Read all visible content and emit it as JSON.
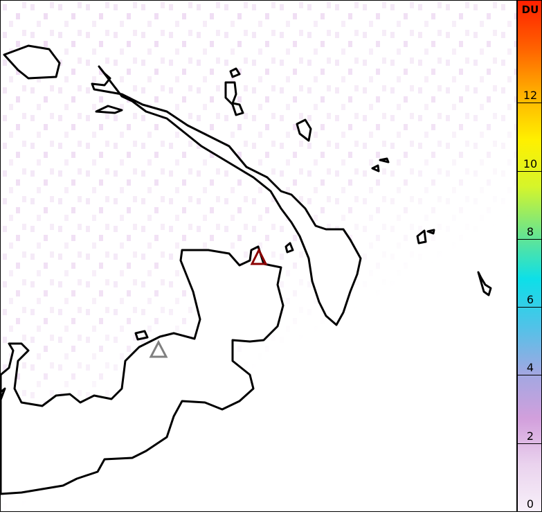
{
  "colorbar": {
    "unit": "DU",
    "range": [
      0,
      15
    ],
    "ticks": [
      "0",
      "2",
      "4",
      "6",
      "8",
      "10",
      "12"
    ],
    "colors": [
      "#f7f0f9",
      "#ead3ee",
      "#d29fdc",
      "#9fa8e2",
      "#4fc3e8",
      "#0ddfe8",
      "#6de58a",
      "#d6f52a",
      "#fff000",
      "#ffb000",
      "#ff6000",
      "#ff2000"
    ]
  },
  "map": {
    "coastline_color": "#000000",
    "markers": [
      {
        "name": "volcano-red",
        "shape": "triangle",
        "color": "#8b0000"
      },
      {
        "name": "volcano-gray",
        "shape": "triangle",
        "color": "#808080"
      }
    ],
    "background_so2_color": "#efdcf3"
  }
}
